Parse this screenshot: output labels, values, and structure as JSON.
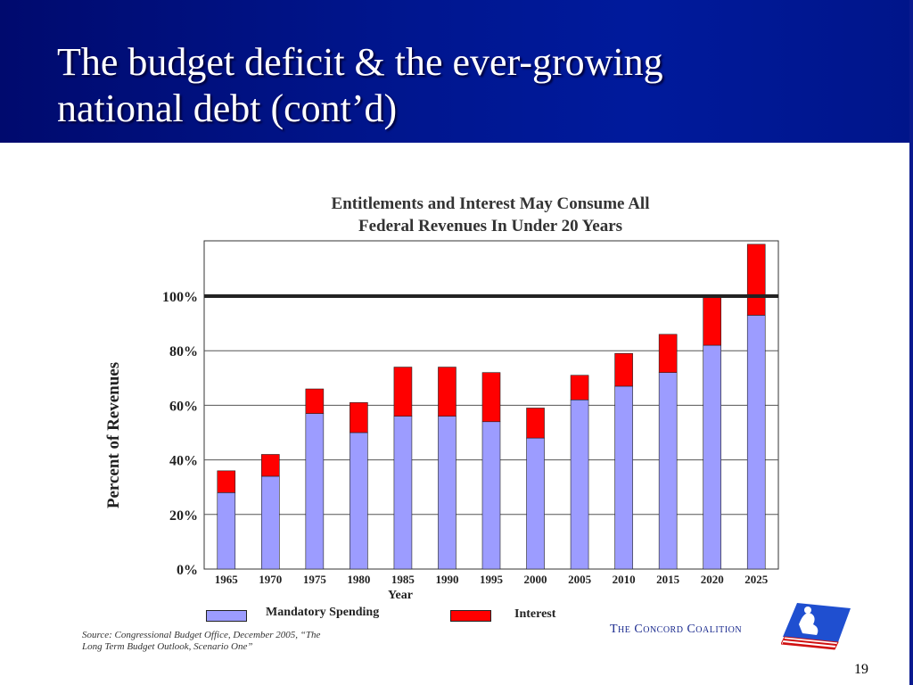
{
  "slide": {
    "title_line1": "The budget deficit & the ever-growing",
    "title_line2": "national debt (cont’d)",
    "page_number": "19"
  },
  "branding": {
    "org_name": "The Concord Coalition",
    "logo_icon": "concord-coalition-logo-icon"
  },
  "source": {
    "line1": "Source: Congressional Budget Office, December 2005, “The",
    "line2": "Long Term Budget Outlook, Scenario One”"
  },
  "legend": {
    "mandatory": "Mandatory Spending",
    "interest": "Interest"
  },
  "chart_data": {
    "type": "bar",
    "stacked": true,
    "title_line1": "Entitlements and Interest May Consume All",
    "title_line2": "Federal Revenues In Under 20 Years",
    "xlabel": "Year",
    "ylabel": "Percent of Revenues",
    "ylim": [
      0,
      120
    ],
    "yticks": [
      0,
      20,
      40,
      60,
      80,
      100
    ],
    "ytick_labels": [
      "0%",
      "20%",
      "40%",
      "60%",
      "80%",
      "100%"
    ],
    "reference_line": 100,
    "grid": true,
    "legend_position": "bottom",
    "categories": [
      "1965",
      "1970",
      "1975",
      "1980",
      "1985",
      "1990",
      "1995",
      "2000",
      "2005",
      "2010",
      "2015",
      "2020",
      "2025"
    ],
    "series": [
      {
        "name": "Mandatory Spending",
        "color": "#9c9cff",
        "values": [
          28,
          34,
          57,
          50,
          56,
          56,
          54,
          48,
          62,
          67,
          72,
          82,
          93
        ]
      },
      {
        "name": "Interest",
        "color": "#ff0000",
        "values": [
          8,
          8,
          9,
          11,
          18,
          18,
          18,
          11,
          9,
          12,
          14,
          18,
          26
        ]
      }
    ]
  }
}
